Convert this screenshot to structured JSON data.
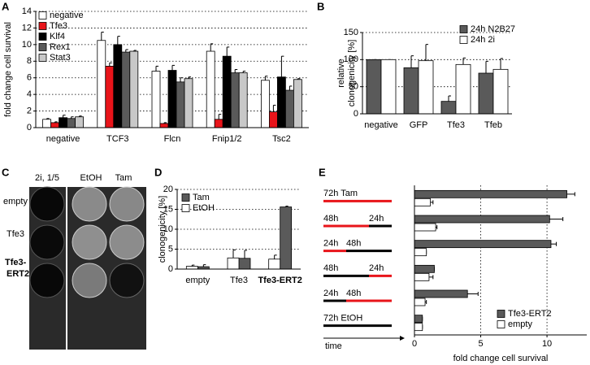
{
  "chart_data": [
    {
      "panel": "A",
      "type": "bar",
      "ylabel": [
        "fold change cell survival"
      ],
      "categories": [
        "negative",
        "TCF3",
        "Flcn",
        "Fnip1/2",
        "Tsc2"
      ],
      "series": [
        {
          "name": "negative",
          "color": "#ffffff",
          "values": [
            1.0,
            10.5,
            6.8,
            9.2,
            5.7
          ],
          "errors": [
            0.1,
            1.0,
            0.6,
            0.9,
            0.5
          ]
        },
        {
          "name": "Tfe3",
          "color": "#e8141a",
          "values": [
            0.6,
            7.4,
            0.5,
            1.0,
            1.9
          ],
          "errors": [
            0.1,
            0.4,
            0.1,
            0.6,
            0.8
          ]
        },
        {
          "name": "Klf4",
          "color": "#000000",
          "values": [
            1.2,
            10.0,
            6.9,
            8.6,
            6.1
          ],
          "errors": [
            0.3,
            1.0,
            0.6,
            1.1,
            2.5
          ]
        },
        {
          "name": "Rex1",
          "color": "#5a5a5a",
          "values": [
            1.1,
            9.1,
            5.5,
            6.6,
            4.5
          ],
          "errors": [
            0.2,
            0.3,
            0.5,
            0.4,
            0.5
          ]
        },
        {
          "name": "Stat3",
          "color": "#c8c8c8",
          "values": [
            1.3,
            9.2,
            5.9,
            6.6,
            5.8
          ],
          "errors": [
            0.1,
            0.1,
            0.2,
            0.2,
            0.1
          ]
        }
      ],
      "ylim": [
        0,
        14
      ],
      "yticks": [
        0,
        2,
        4,
        6,
        8,
        10,
        12,
        14
      ],
      "grid": true,
      "legend": "top-left"
    },
    {
      "panel": "B",
      "type": "bar",
      "ylabel": [
        "relative",
        "clonogenicity [%]"
      ],
      "categories": [
        "negative",
        "GFP",
        "Tfe3",
        "Tfeb"
      ],
      "series": [
        {
          "name": "24h N2B27",
          "color": "#5a5a5a",
          "values": [
            100,
            85,
            23,
            75
          ],
          "errors": [
            0,
            22,
            10,
            22
          ]
        },
        {
          "name": "24h 2i",
          "color": "#ffffff",
          "values": [
            100,
            98,
            91,
            82
          ],
          "errors": [
            0,
            30,
            12,
            20
          ]
        }
      ],
      "ylim": [
        0,
        150
      ],
      "yticks": [
        0,
        50,
        100,
        150
      ],
      "grid": true,
      "legend": "top-right"
    },
    {
      "panel": "D",
      "type": "bar",
      "ylabel": [
        "clonogenicity [%]"
      ],
      "categories": [
        "empty",
        "Tfe3",
        "Tfe3-ERT2"
      ],
      "category_bold": [
        false,
        false,
        true
      ],
      "series": [
        {
          "name": "Tam",
          "color": "#5a5a5a",
          "values": [
            0.6,
            2.7,
            15.6
          ],
          "errors": [
            0.5,
            2.0,
            0.2
          ]
        },
        {
          "name": "EtOH",
          "color": "#ffffff",
          "values": [
            0.7,
            2.8,
            2.5
          ],
          "errors": [
            0.3,
            2.0,
            1.0
          ]
        }
      ],
      "ylim": [
        0,
        20
      ],
      "yticks": [
        0,
        5,
        10,
        15,
        20
      ],
      "grid": true,
      "legend": "top-left"
    },
    {
      "panel": "E",
      "type": "hbar",
      "xlabel": "fold change cell survival",
      "axis_note": "time",
      "timelines": [
        [
          {
            "text": "72h Tam",
            "color": "#e8141a"
          }
        ],
        [
          {
            "text": "48h",
            "color": "#e8141a"
          },
          {
            "text": "24h",
            "color": "#000000"
          }
        ],
        [
          {
            "text": "24h",
            "color": "#e8141a"
          },
          {
            "text": "48h",
            "color": "#000000"
          }
        ],
        [
          {
            "text": "48h",
            "color": "#000000"
          },
          {
            "text": "24h",
            "color": "#e8141a"
          }
        ],
        [
          {
            "text": "24h",
            "color": "#000000"
          },
          {
            "text": "48h",
            "color": "#e8141a"
          }
        ],
        [
          {
            "text": "72h EtOH",
            "color": "#000000"
          }
        ]
      ],
      "series": [
        {
          "name": "Tfe3-ERT2",
          "color": "#5a5a5a",
          "values": [
            11.5,
            10.2,
            10.3,
            1.5,
            4.0,
            0.6
          ],
          "errors": [
            0.6,
            1.0,
            0.4,
            0,
            0.8,
            0
          ]
        },
        {
          "name": "empty",
          "color": "#ffffff",
          "values": [
            1.2,
            1.6,
            0.9,
            1.1,
            0.8,
            0.6
          ],
          "errors": [
            0.2,
            0.1,
            0,
            0.3,
            0.1,
            0
          ]
        }
      ],
      "xlim": [
        0,
        13
      ],
      "xticks": [
        0,
        5,
        10
      ],
      "grid": true,
      "legend": "bottom-right"
    }
  ],
  "panel_c": {
    "panel": "C",
    "columns": [
      "2i, 1/5",
      "EtOH",
      "Tam"
    ],
    "rows": [
      [
        "empty"
      ],
      [
        "Tfe3"
      ],
      [
        "Tfe3-",
        "ERT2"
      ]
    ]
  }
}
